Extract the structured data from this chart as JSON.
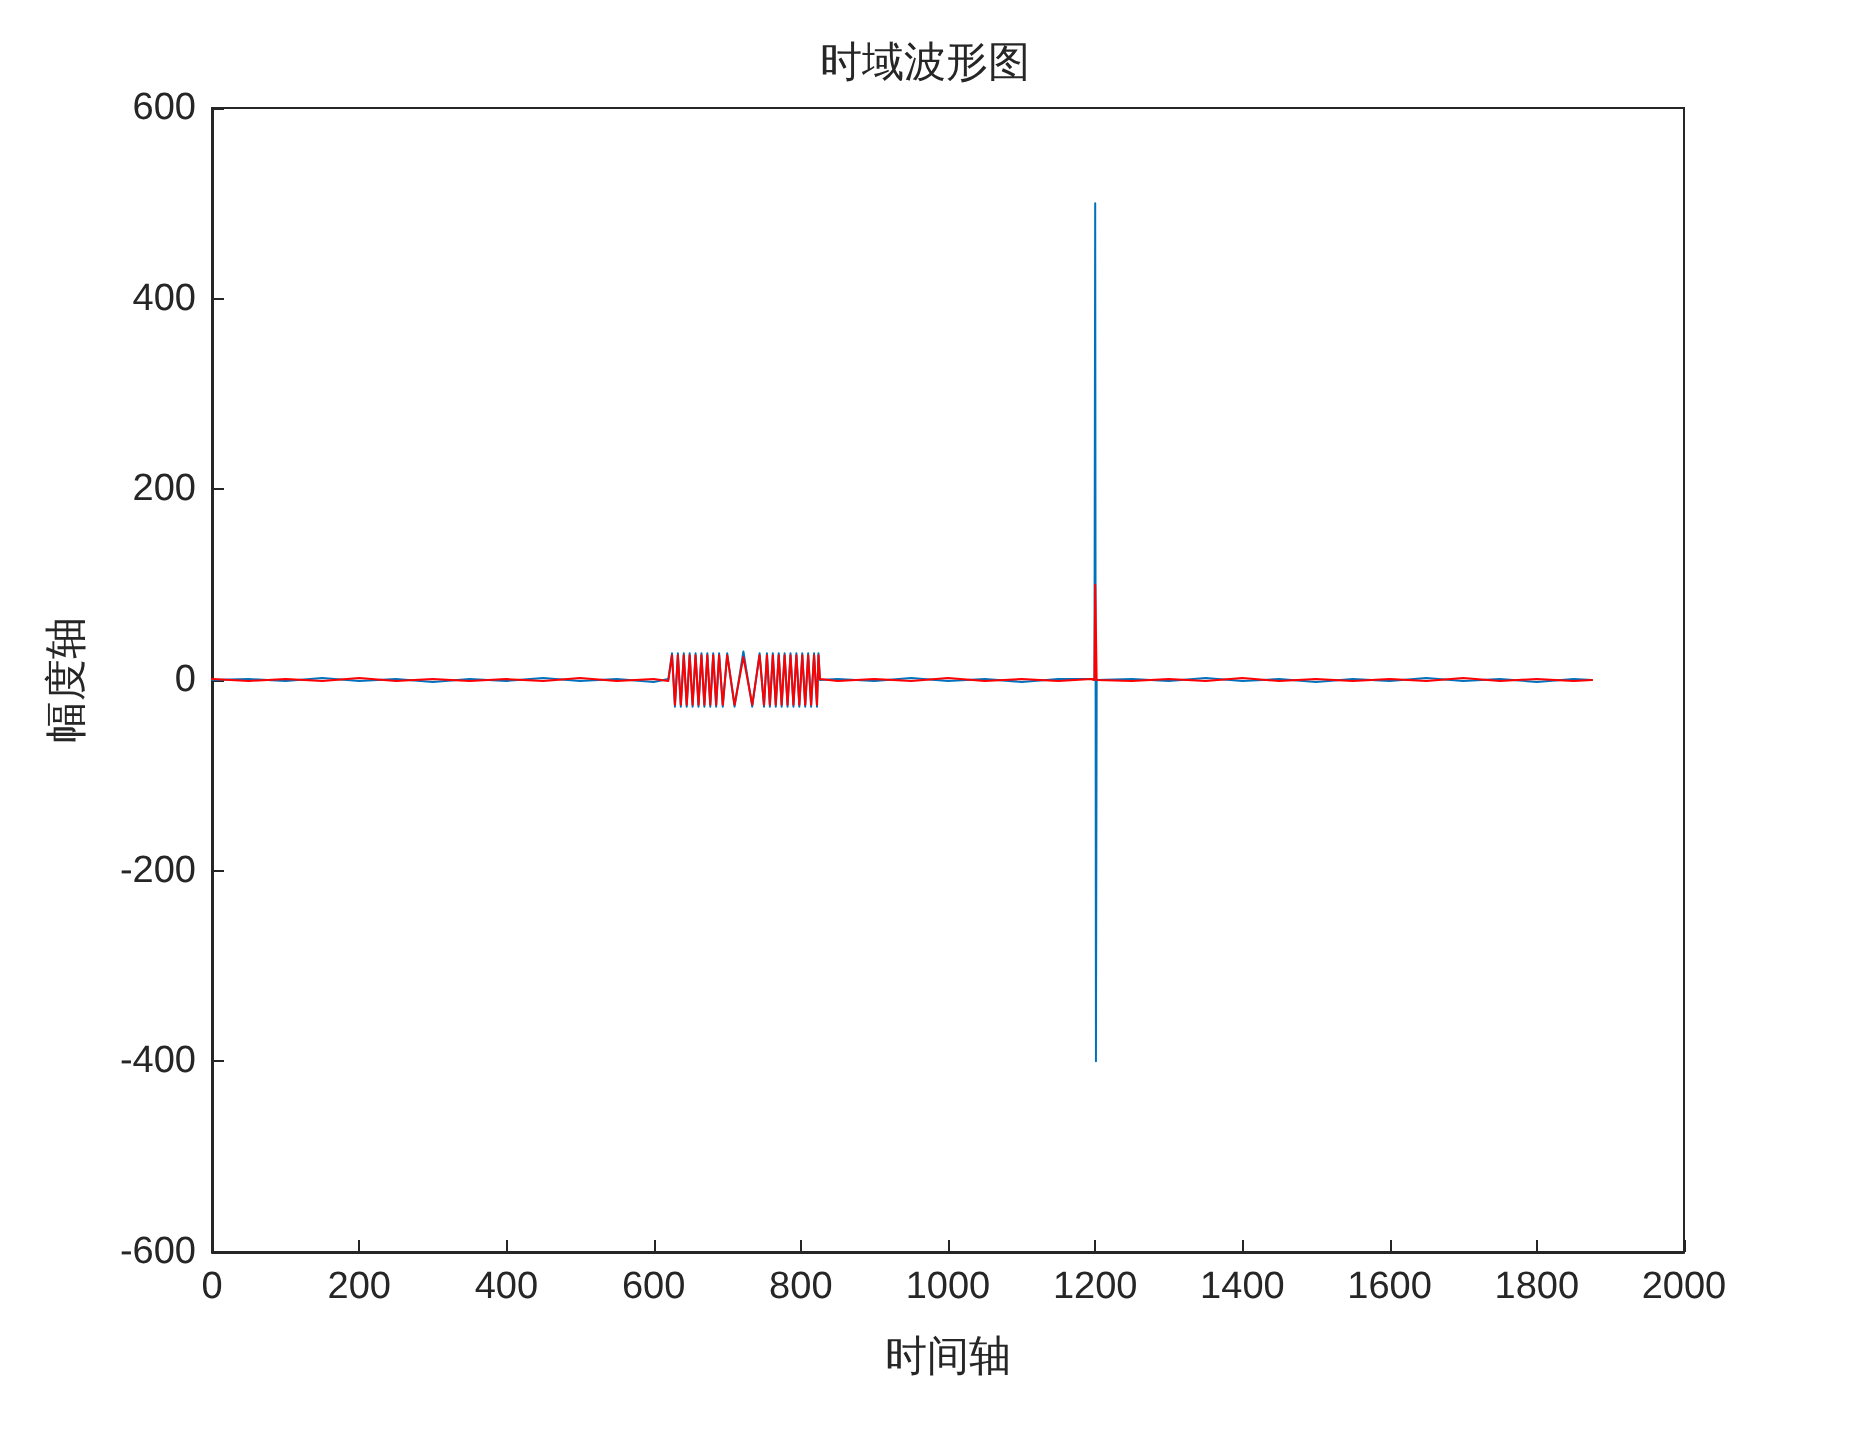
{
  "chart_data": {
    "type": "line",
    "title": "时域波形图",
    "xlabel": "时间轴",
    "ylabel": "幅度轴",
    "xlim": [
      0,
      2000
    ],
    "xticks": [
      0,
      200,
      400,
      600,
      800,
      1000,
      1200,
      1400,
      1600,
      1800,
      2000
    ],
    "ylim": [
      -600,
      600
    ],
    "yticks": [
      -600,
      -400,
      -200,
      0,
      200,
      400,
      600
    ],
    "grid": false,
    "marker": "none",
    "line_style": "solid",
    "series": [
      {
        "color": "#0072bd",
        "x": [
          0,
          50,
          100,
          150,
          200,
          250,
          300,
          350,
          400,
          450,
          500,
          550,
          600,
          620,
          625,
          629,
          633,
          637,
          641,
          645,
          649,
          653,
          657,
          661,
          665,
          669,
          673,
          677,
          681,
          685,
          689,
          694,
          700,
          710,
          722,
          734,
          744,
          750,
          754,
          758,
          762,
          766,
          770,
          774,
          778,
          782,
          786,
          790,
          794,
          798,
          802,
          806,
          810,
          814,
          818,
          822,
          824,
          826,
          850,
          900,
          950,
          1000,
          1050,
          1100,
          1150,
          1195,
          1199,
          1200,
          1201,
          1202,
          1250,
          1300,
          1350,
          1400,
          1450,
          1500,
          1550,
          1600,
          1650,
          1700,
          1750,
          1800,
          1850,
          1875
        ],
        "values": [
          0,
          1,
          -1,
          2,
          -1,
          1,
          -2,
          1,
          -1,
          2,
          -1,
          1,
          -2,
          1,
          28,
          -28,
          28,
          -28,
          28,
          -28,
          28,
          -28,
          28,
          -28,
          28,
          -28,
          28,
          -28,
          28,
          -28,
          28,
          -28,
          28,
          -28,
          30,
          -28,
          28,
          -28,
          28,
          -28,
          28,
          -28,
          28,
          -28,
          28,
          -28,
          28,
          -28,
          28,
          -28,
          28,
          -28,
          28,
          -28,
          28,
          -28,
          28,
          0,
          1,
          -1,
          2,
          -1,
          1,
          -2,
          1,
          1,
          0,
          500,
          -400,
          0,
          1,
          -1,
          2,
          -1,
          1,
          -2,
          1,
          -1,
          2,
          -1,
          1,
          -2,
          1,
          0
        ]
      },
      {
        "color": "#ff0000",
        "x": [
          0,
          50,
          100,
          150,
          200,
          250,
          300,
          350,
          400,
          450,
          500,
          550,
          600,
          620,
          625,
          629,
          633,
          637,
          641,
          645,
          649,
          653,
          657,
          661,
          665,
          669,
          673,
          677,
          681,
          685,
          689,
          694,
          700,
          710,
          722,
          734,
          744,
          750,
          754,
          758,
          762,
          766,
          770,
          774,
          778,
          782,
          786,
          790,
          794,
          798,
          802,
          806,
          810,
          814,
          818,
          822,
          824,
          826,
          850,
          900,
          950,
          1000,
          1050,
          1100,
          1150,
          1195,
          1199,
          1200,
          1202,
          1250,
          1300,
          1350,
          1400,
          1450,
          1500,
          1550,
          1600,
          1650,
          1700,
          1750,
          1800,
          1850,
          1875
        ],
        "values": [
          1,
          -1,
          1,
          -1,
          2,
          -1,
          1,
          -1,
          1,
          -1,
          2,
          -1,
          1,
          -1,
          26,
          -26,
          26,
          -26,
          26,
          -26,
          26,
          -26,
          26,
          -26,
          26,
          -26,
          26,
          -26,
          26,
          -26,
          26,
          -26,
          26,
          -26,
          24,
          -26,
          26,
          -26,
          26,
          -26,
          26,
          -26,
          26,
          -26,
          26,
          -26,
          26,
          -26,
          26,
          -26,
          26,
          -26,
          26,
          -26,
          26,
          -26,
          26,
          1,
          -1,
          1,
          -1,
          2,
          -1,
          1,
          -1,
          1,
          0,
          100,
          0,
          -1,
          1,
          -1,
          2,
          -1,
          1,
          -1,
          1,
          -1,
          2,
          -1,
          1,
          -1,
          0
        ]
      }
    ]
  }
}
